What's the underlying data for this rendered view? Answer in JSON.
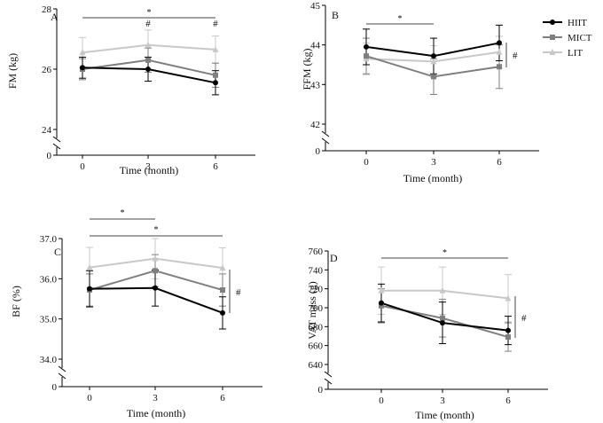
{
  "legend": [
    {
      "name": "HIIT",
      "color": "#000000",
      "marker": "circle"
    },
    {
      "name": "MICT",
      "color": "#7f7f7f",
      "marker": "square"
    },
    {
      "name": "LIT",
      "color": "#c8c8c8",
      "marker": "triangle"
    }
  ],
  "chart_data": [
    {
      "type": "line",
      "panel": "A",
      "xlabel": "Time (month)",
      "ylabel": "FM (kg)",
      "categories": [
        "0",
        "3",
        "6"
      ],
      "ylim": [
        24,
        28
      ],
      "yticks": [
        "24",
        "26",
        "28"
      ],
      "zero_tick": "0",
      "series": [
        {
          "name": "HIIT",
          "values": [
            26.05,
            26.0,
            25.55
          ],
          "error": [
            0.35,
            0.4,
            0.4
          ]
        },
        {
          "name": "MICT",
          "values": [
            26.0,
            26.3,
            25.8
          ],
          "error": [
            0.35,
            0.4,
            0.4
          ]
        },
        {
          "name": "LIT",
          "values": [
            26.55,
            26.8,
            26.65
          ],
          "error": [
            0.5,
            0.5,
            0.45
          ]
        }
      ],
      "annotations": [
        {
          "text": "*",
          "type": "bracket",
          "from": 0,
          "to": 2
        },
        {
          "text": "#",
          "at": 1
        },
        {
          "text": "#",
          "at": 2
        }
      ]
    },
    {
      "type": "line",
      "panel": "B",
      "xlabel": "Time (month)",
      "ylabel": "FFM (kg)",
      "categories": [
        "0",
        "3",
        "6"
      ],
      "ylim": [
        42,
        45
      ],
      "yticks": [
        "42",
        "43",
        "44",
        "45"
      ],
      "zero_tick": "0",
      "series": [
        {
          "name": "HIIT",
          "values": [
            43.95,
            43.72,
            44.05
          ],
          "error": [
            0.45,
            0.45,
            0.45
          ]
        },
        {
          "name": "MICT",
          "values": [
            43.72,
            43.2,
            43.45
          ],
          "error": [
            0.45,
            0.45,
            0.55
          ]
        },
        {
          "name": "LIT",
          "values": [
            43.65,
            43.58,
            43.82
          ],
          "error": [
            0.4,
            0.4,
            0.4
          ]
        }
      ],
      "annotations": [
        {
          "text": "*",
          "type": "bracket",
          "from": 0,
          "to": 1
        },
        {
          "text": "#",
          "type": "side",
          "at": 2
        }
      ]
    },
    {
      "type": "line",
      "panel": "C",
      "xlabel": "Time (month)",
      "ylabel": "BF (%)",
      "categories": [
        "0",
        "3",
        "6"
      ],
      "ylim": [
        34,
        37
      ],
      "yticks": [
        "34.0",
        "35.0",
        "36.0",
        "37.0"
      ],
      "zero_tick": "0",
      "series": [
        {
          "name": "HIIT",
          "values": [
            35.75,
            35.77,
            35.15
          ],
          "error": [
            0.45,
            0.45,
            0.4
          ]
        },
        {
          "name": "MICT",
          "values": [
            35.72,
            36.2,
            35.72
          ],
          "error": [
            0.4,
            0.4,
            0.4
          ]
        },
        {
          "name": "LIT",
          "values": [
            36.28,
            36.5,
            36.27
          ],
          "error": [
            0.5,
            0.5,
            0.5
          ]
        }
      ],
      "annotations": [
        {
          "text": "*",
          "type": "bracket",
          "from": 0,
          "to": 1
        },
        {
          "text": "*",
          "type": "bracket",
          "from": 0,
          "to": 2
        },
        {
          "text": "#",
          "type": "side",
          "at": 2
        }
      ]
    },
    {
      "type": "line",
      "panel": "D",
      "xlabel": "Time (month)",
      "ylabel": "VAT mass (g)",
      "categories": [
        "0",
        "3",
        "6"
      ],
      "ylim": [
        640,
        760
      ],
      "yticks": [
        "640",
        "660",
        "680",
        "700",
        "720",
        "740",
        "760"
      ],
      "zero_tick": "0",
      "series": [
        {
          "name": "HIIT",
          "values": [
            705,
            684,
            676
          ],
          "error": [
            20,
            22,
            15
          ]
        },
        {
          "name": "MICT",
          "values": [
            702,
            689,
            669
          ],
          "error": [
            18,
            20,
            15
          ]
        },
        {
          "name": "LIT",
          "values": [
            718,
            718,
            710
          ],
          "error": [
            25,
            25,
            25
          ]
        }
      ],
      "annotations": [
        {
          "text": "*",
          "type": "bracket",
          "from": 0,
          "to": 2
        },
        {
          "text": "#",
          "type": "side",
          "at": 2
        }
      ]
    }
  ]
}
